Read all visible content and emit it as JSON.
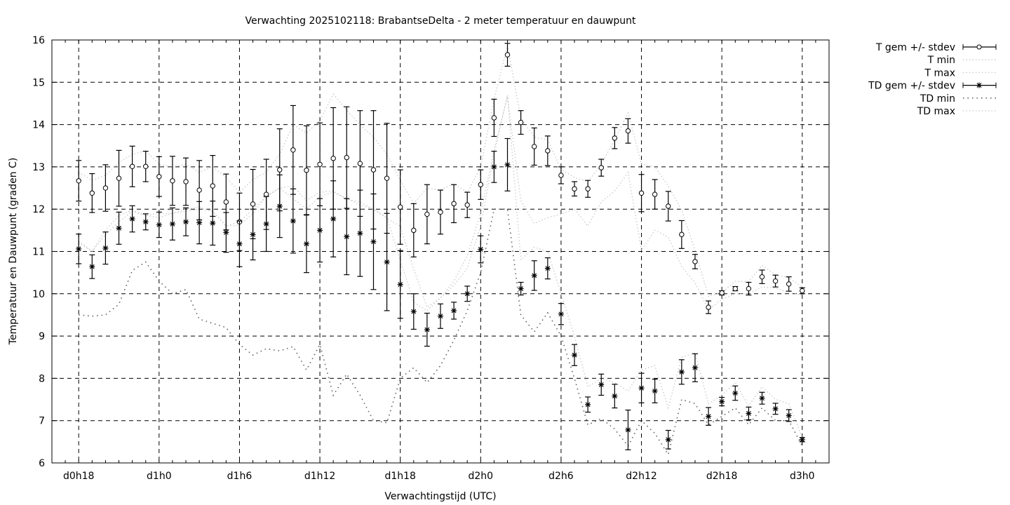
{
  "chart_data": {
    "type": "line",
    "title": "Verwachting 2025102118: BrabantseDelta - 2 meter temperatuur en dauwpunt",
    "xlabel": "Verwachtingstijd (UTC)",
    "ylabel": "Temperatuur en Dauwpunt (graden C)",
    "xlim_hours": [
      16,
      74
    ],
    "ylim": [
      6,
      16
    ],
    "grid": true,
    "legend_placement": "outside-top-right",
    "x_ticks": [
      {
        "hour": 18,
        "label": "d0h18"
      },
      {
        "hour": 24,
        "label": "d1h0"
      },
      {
        "hour": 30,
        "label": "d1h6"
      },
      {
        "hour": 36,
        "label": "d1h12"
      },
      {
        "hour": 42,
        "label": "d1h18"
      },
      {
        "hour": 48,
        "label": "d2h0"
      },
      {
        "hour": 54,
        "label": "d2h6"
      },
      {
        "hour": 60,
        "label": "d2h12"
      },
      {
        "hour": 66,
        "label": "d2h18"
      },
      {
        "hour": 72,
        "label": "d3h0"
      }
    ],
    "y_ticks": [
      "6",
      "7",
      "8",
      "9",
      "10",
      "11",
      "12",
      "13",
      "14",
      "15",
      "16"
    ],
    "x_hours_start": 18,
    "x_hours_end": 72,
    "series": [
      {
        "name": "T gem +/- stdev",
        "style": "errorbar-circle",
        "color": "#000000",
        "values": [
          12.67,
          12.38,
          12.5,
          12.73,
          13.01,
          13.01,
          12.77,
          12.67,
          12.65,
          12.45,
          12.55,
          12.17,
          11.7,
          12.12,
          12.35,
          12.93,
          13.4,
          12.92,
          13.06,
          13.2,
          13.22,
          13.08,
          12.93,
          12.73,
          12.05,
          11.5,
          11.88,
          11.93,
          12.13,
          12.1,
          12.58,
          14.16,
          15.65,
          14.05,
          13.48,
          13.38,
          12.8,
          12.48,
          12.48,
          12.98,
          13.68,
          13.85,
          12.38,
          12.35,
          12.07,
          11.4,
          10.76,
          9.68,
          10.02,
          10.12,
          10.12,
          10.4,
          10.3,
          10.23,
          10.07
        ],
        "stdev": [
          0.48,
          0.46,
          0.55,
          0.66,
          0.48,
          0.36,
          0.47,
          0.58,
          0.56,
          0.7,
          0.72,
          0.66,
          0.68,
          0.82,
          0.83,
          0.97,
          1.05,
          1.05,
          0.98,
          1.2,
          1.2,
          1.25,
          1.4,
          1.3,
          0.88,
          0.63,
          0.7,
          0.52,
          0.45,
          0.3,
          0.35,
          0.44,
          0.27,
          0.28,
          0.44,
          0.35,
          0.2,
          0.17,
          0.2,
          0.2,
          0.25,
          0.29,
          0.44,
          0.35,
          0.35,
          0.33,
          0.17,
          0.15,
          0.05,
          0.05,
          0.15,
          0.16,
          0.14,
          0.17,
          0.07
        ]
      },
      {
        "name": "T min",
        "style": "dotted",
        "color": "#c8c8c8",
        "values": [
          11.25,
          11.0,
          11.5,
          11.85,
          11.97,
          11.85,
          11.8,
          11.9,
          11.95,
          12.0,
          11.95,
          11.6,
          11.62,
          11.9,
          12.3,
          12.5,
          12.55,
          12.2,
          12.4,
          12.43,
          12.24,
          12.17,
          12.0,
          11.78,
          11.6,
          10.58,
          9.68,
          9.9,
          10.3,
          10.9,
          11.9,
          13.4,
          14.66,
          12.2,
          11.66,
          11.8,
          11.88,
          12.0,
          11.6,
          12.17,
          12.43,
          12.87,
          11.02,
          11.5,
          11.34,
          10.64,
          10.26,
          9.62,
          9.87,
          10.0,
          10.0,
          10.16,
          10.13,
          10.03,
          9.97
        ]
      },
      {
        "name": "T max",
        "style": "dotted",
        "color": "#c8c8c8",
        "values": [
          12.87,
          12.68,
          12.8,
          13.1,
          13.3,
          13.38,
          13.06,
          13.0,
          13.06,
          12.87,
          13.0,
          12.75,
          12.4,
          12.7,
          12.87,
          13.3,
          14.0,
          13.8,
          14.09,
          14.72,
          14.34,
          14.0,
          13.7,
          13.3,
          12.68,
          12.14,
          12.49,
          12.46,
          12.6,
          12.4,
          13.0,
          14.6,
          15.87,
          14.15,
          13.7,
          13.64,
          12.94,
          12.75,
          12.65,
          13.06,
          13.64,
          14.28,
          13.06,
          13.0,
          12.55,
          11.98,
          11.02,
          9.94,
          10.03,
          10.29,
          10.29,
          10.67,
          10.45,
          10.38,
          10.16
        ]
      },
      {
        "name": "TD gem +/- stdev",
        "style": "errorbar-star",
        "color": "#000000",
        "values": [
          11.06,
          10.64,
          11.08,
          11.55,
          11.77,
          11.7,
          11.63,
          11.65,
          11.7,
          11.68,
          11.67,
          11.45,
          11.18,
          11.4,
          11.65,
          12.07,
          11.72,
          11.18,
          11.5,
          11.77,
          11.35,
          11.43,
          11.23,
          10.75,
          10.22,
          9.58,
          9.15,
          9.47,
          9.6,
          10.0,
          11.05,
          13.0,
          13.05,
          10.12,
          10.43,
          10.6,
          9.52,
          8.55,
          7.38,
          7.85,
          7.58,
          6.78,
          7.77,
          7.7,
          6.55,
          8.15,
          8.25,
          7.1,
          7.45,
          7.65,
          7.17,
          7.53,
          7.28,
          7.12,
          6.55
        ],
        "stdev": [
          0.35,
          0.28,
          0.38,
          0.38,
          0.31,
          0.19,
          0.3,
          0.38,
          0.33,
          0.5,
          0.52,
          0.47,
          0.54,
          0.6,
          0.65,
          0.74,
          0.76,
          0.68,
          0.75,
          0.9,
          0.9,
          1.02,
          1.13,
          1.15,
          0.8,
          0.42,
          0.39,
          0.29,
          0.2,
          0.18,
          0.32,
          0.37,
          0.62,
          0.15,
          0.35,
          0.25,
          0.25,
          0.25,
          0.18,
          0.25,
          0.28,
          0.47,
          0.35,
          0.28,
          0.22,
          0.29,
          0.33,
          0.21,
          0.1,
          0.17,
          0.15,
          0.14,
          0.13,
          0.14,
          0.05
        ]
      },
      {
        "name": "TD min",
        "style": "dotted-dark",
        "color": "#606060",
        "values": [
          9.5,
          9.47,
          9.5,
          9.75,
          10.55,
          10.75,
          10.3,
          10.0,
          10.1,
          9.4,
          9.3,
          9.2,
          8.8,
          8.55,
          8.7,
          8.65,
          8.75,
          8.2,
          8.8,
          7.6,
          8.1,
          7.6,
          7.0,
          6.95,
          8.0,
          8.25,
          7.9,
          8.3,
          8.9,
          9.6,
          10.5,
          12.0,
          12.0,
          9.5,
          9.1,
          9.55,
          9.0,
          8.0,
          6.9,
          7.05,
          6.8,
          6.4,
          7.0,
          6.7,
          6.2,
          7.5,
          7.4,
          6.9,
          7.1,
          7.3,
          6.9,
          7.3,
          7.0,
          7.0,
          6.4
        ]
      },
      {
        "name": "TD max",
        "style": "dotted",
        "color": "#c8c8c8",
        "values": [
          11.2,
          11.0,
          11.4,
          11.7,
          11.95,
          11.85,
          11.9,
          11.9,
          12.0,
          12.05,
          11.95,
          11.6,
          11.7,
          12.0,
          12.3,
          12.5,
          12.25,
          12.0,
          12.3,
          12.4,
          12.25,
          12.1,
          12.0,
          11.8,
          10.8,
          9.8,
          9.6,
          9.9,
          10.2,
          10.6,
          11.6,
          13.3,
          14.7,
          10.8,
          11.1,
          11.0,
          10.0,
          9.0,
          7.8,
          8.0,
          7.9,
          7.7,
          8.2,
          8.3,
          7.3,
          8.5,
          8.6,
          7.4,
          7.6,
          7.9,
          7.35,
          7.8,
          7.5,
          7.4,
          6.6
        ]
      }
    ]
  }
}
